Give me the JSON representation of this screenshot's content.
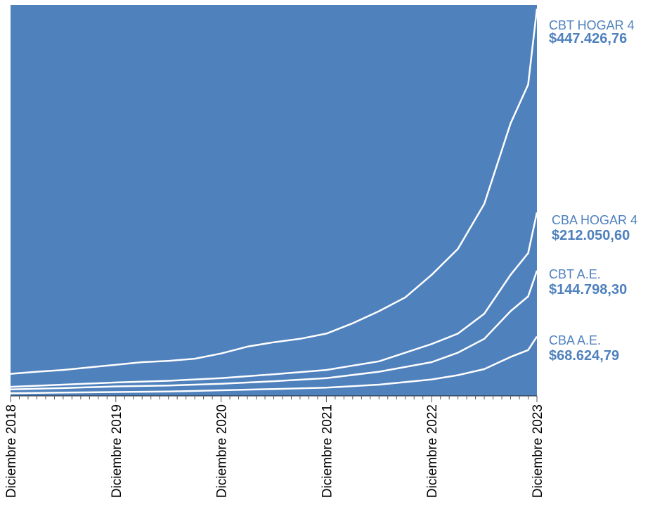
{
  "chart_data": {
    "type": "line",
    "x_tick_labels": [
      "Diciembre 2018",
      "Diciembre 2019",
      "Diciembre 2020",
      "Diciembre 2021",
      "Diciembre 2022",
      "Diciembre 2023"
    ],
    "colors": {
      "plot_background": "#4f81bd",
      "series_line": "#ffffff",
      "label_text": "#4f81bd"
    },
    "grid": false,
    "ylim": [
      0,
      452000
    ],
    "series": [
      {
        "name": "CBT HOGAR 4",
        "end_label": "$447.426,76",
        "points": [
          [
            "2018-12",
            25500
          ],
          [
            "2019-03",
            28000
          ],
          [
            "2019-06",
            30000
          ],
          [
            "2019-09",
            33000
          ],
          [
            "2019-12",
            36000
          ],
          [
            "2020-03",
            39000
          ],
          [
            "2020-06",
            40500
          ],
          [
            "2020-09",
            43000
          ],
          [
            "2020-12",
            49000
          ],
          [
            "2021-03",
            57000
          ],
          [
            "2021-06",
            62000
          ],
          [
            "2021-09",
            66000
          ],
          [
            "2021-12",
            72000
          ],
          [
            "2022-03",
            84000
          ],
          [
            "2022-06",
            98000
          ],
          [
            "2022-09",
            114000
          ],
          [
            "2022-12",
            140000
          ],
          [
            "2023-03",
            170000
          ],
          [
            "2023-06",
            222000
          ],
          [
            "2023-09",
            315000
          ],
          [
            "2023-11",
            360000
          ],
          [
            "2023-12",
            447426.76
          ]
        ]
      },
      {
        "name": "CBA HOGAR 4",
        "end_label": "$212.050,60",
        "points": [
          [
            "2018-12",
            10500
          ],
          [
            "2019-06",
            13000
          ],
          [
            "2019-12",
            15500
          ],
          [
            "2020-06",
            17500
          ],
          [
            "2020-12",
            20500
          ],
          [
            "2021-06",
            25000
          ],
          [
            "2021-12",
            30000
          ],
          [
            "2022-06",
            40000
          ],
          [
            "2022-12",
            60000
          ],
          [
            "2023-03",
            72000
          ],
          [
            "2023-06",
            95000
          ],
          [
            "2023-09",
            140000
          ],
          [
            "2023-11",
            165000
          ],
          [
            "2023-12",
            212050.6
          ]
        ]
      },
      {
        "name": "CBT A.E.",
        "end_label": "$144.798,30",
        "points": [
          [
            "2018-12",
            7500
          ],
          [
            "2019-06",
            9000
          ],
          [
            "2019-12",
            11000
          ],
          [
            "2020-06",
            12000
          ],
          [
            "2020-12",
            14000
          ],
          [
            "2021-06",
            17000
          ],
          [
            "2021-12",
            20500
          ],
          [
            "2022-06",
            28000
          ],
          [
            "2022-12",
            39000
          ],
          [
            "2023-03",
            50000
          ],
          [
            "2023-06",
            66000
          ],
          [
            "2023-09",
            98000
          ],
          [
            "2023-11",
            115000
          ],
          [
            "2023-12",
            144798.3
          ]
        ]
      },
      {
        "name": "CBA A.E.",
        "end_label": "$68.624,79",
        "points": [
          [
            "2018-12",
            3000
          ],
          [
            "2019-06",
            3800
          ],
          [
            "2019-12",
            4500
          ],
          [
            "2020-06",
            5000
          ],
          [
            "2020-12",
            6500
          ],
          [
            "2021-06",
            8000
          ],
          [
            "2021-12",
            9500
          ],
          [
            "2022-06",
            13000
          ],
          [
            "2022-12",
            19000
          ],
          [
            "2023-03",
            24000
          ],
          [
            "2023-06",
            31000
          ],
          [
            "2023-09",
            45000
          ],
          [
            "2023-11",
            53000
          ],
          [
            "2023-12",
            68624.79
          ]
        ]
      }
    ]
  }
}
